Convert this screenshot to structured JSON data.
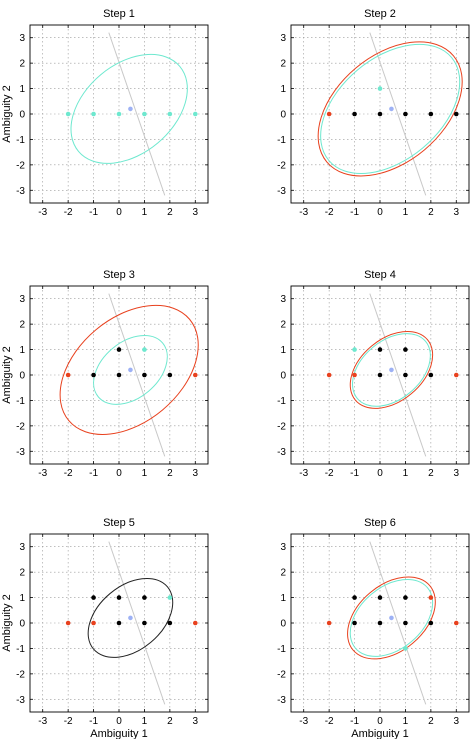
{
  "palette": {
    "black": "#000000",
    "red": "#e8411e",
    "cyan": "#6ee8cf",
    "blue": "#9db1f5",
    "grey_line": "#c8c8c8",
    "ellipse_black": "#222222"
  },
  "chart_data": [
    {
      "type": "scatter",
      "title": "Step 1",
      "xlabel": "",
      "ylabel": "Ambiguity 2",
      "xlim": [
        -3.5,
        3.5
      ],
      "ylim": [
        -3.5,
        3.5
      ],
      "xticks": [
        -3,
        -2,
        -1,
        0,
        1,
        2,
        3
      ],
      "yticks": [
        -3,
        -2,
        -1,
        0,
        1,
        2,
        3
      ],
      "grid": true,
      "guide_line": {
        "x1": -0.4,
        "y1": 3.2,
        "x2": 1.8,
        "y2": -3.2,
        "color": "grey_line"
      },
      "ellipses": [
        {
          "cx": 0.4,
          "cy": 0.2,
          "rx": 2.6,
          "ry": 1.75,
          "angle": -40,
          "color": "cyan"
        }
      ],
      "points": [
        {
          "x": -2,
          "y": 0,
          "color": "cyan"
        },
        {
          "x": -1,
          "y": 0,
          "color": "cyan"
        },
        {
          "x": 0,
          "y": 0,
          "color": "cyan"
        },
        {
          "x": 1,
          "y": 0,
          "color": "cyan"
        },
        {
          "x": 2,
          "y": 0,
          "color": "cyan"
        },
        {
          "x": 3,
          "y": 0,
          "color": "cyan"
        },
        {
          "x": 0.45,
          "y": 0.2,
          "color": "blue"
        }
      ]
    },
    {
      "type": "scatter",
      "title": "Step 2",
      "xlabel": "",
      "ylabel": "",
      "xlim": [
        -3.5,
        3.5
      ],
      "ylim": [
        -3.5,
        3.5
      ],
      "xticks": [
        -3,
        -2,
        -1,
        0,
        1,
        2,
        3
      ],
      "yticks": [
        -3,
        -2,
        -1,
        0,
        1,
        2,
        3
      ],
      "grid": true,
      "guide_line": {
        "x1": -0.4,
        "y1": 3.2,
        "x2": 1.8,
        "y2": -3.2,
        "color": "grey_line"
      },
      "ellipses": [
        {
          "cx": 0.4,
          "cy": 0.2,
          "rx": 3.15,
          "ry": 2.0,
          "angle": -40,
          "color": "cyan"
        },
        {
          "cx": 0.4,
          "cy": 0.2,
          "rx": 3.25,
          "ry": 2.1,
          "angle": -40,
          "color": "red"
        }
      ],
      "points": [
        {
          "x": -2,
          "y": 0,
          "color": "red"
        },
        {
          "x": -1,
          "y": 0,
          "color": "black"
        },
        {
          "x": 0,
          "y": 0,
          "color": "black"
        },
        {
          "x": 1,
          "y": 0,
          "color": "black"
        },
        {
          "x": 2,
          "y": 0,
          "color": "black"
        },
        {
          "x": 3,
          "y": 0,
          "color": "black"
        },
        {
          "x": 0,
          "y": 1,
          "color": "cyan"
        },
        {
          "x": 0.45,
          "y": 0.2,
          "color": "blue"
        }
      ]
    },
    {
      "type": "scatter",
      "title": "Step 3",
      "xlabel": "",
      "ylabel": "Ambiguity 2",
      "xlim": [
        -3.5,
        3.5
      ],
      "ylim": [
        -3.5,
        3.5
      ],
      "xticks": [
        -3,
        -2,
        -1,
        0,
        1,
        2,
        3
      ],
      "yticks": [
        -3,
        -2,
        -1,
        0,
        1,
        2,
        3
      ],
      "grid": true,
      "guide_line": {
        "x1": -0.4,
        "y1": 3.2,
        "x2": 1.8,
        "y2": -3.2,
        "color": "grey_line"
      },
      "ellipses": [
        {
          "cx": 0.45,
          "cy": 0.2,
          "rx": 1.65,
          "ry": 1.1,
          "angle": -40,
          "color": "cyan"
        },
        {
          "cx": 0.4,
          "cy": 0.2,
          "rx": 3.1,
          "ry": 2.05,
          "angle": -40,
          "color": "red"
        }
      ],
      "points": [
        {
          "x": -2,
          "y": 0,
          "color": "red"
        },
        {
          "x": -1,
          "y": 0,
          "color": "black"
        },
        {
          "x": 0,
          "y": 0,
          "color": "black"
        },
        {
          "x": 1,
          "y": 0,
          "color": "black"
        },
        {
          "x": 2,
          "y": 0,
          "color": "black"
        },
        {
          "x": 3,
          "y": 0,
          "color": "red"
        },
        {
          "x": 0,
          "y": 1,
          "color": "black"
        },
        {
          "x": 1,
          "y": 1,
          "color": "cyan"
        },
        {
          "x": 0.45,
          "y": 0.2,
          "color": "blue"
        }
      ]
    },
    {
      "type": "scatter",
      "title": "Step 4",
      "xlabel": "",
      "ylabel": "",
      "xlim": [
        -3.5,
        3.5
      ],
      "ylim": [
        -3.5,
        3.5
      ],
      "xticks": [
        -3,
        -2,
        -1,
        0,
        1,
        2,
        3
      ],
      "yticks": [
        -3,
        -2,
        -1,
        0,
        1,
        2,
        3
      ],
      "grid": true,
      "guide_line": {
        "x1": -0.4,
        "y1": 3.2,
        "x2": 1.8,
        "y2": -3.2,
        "color": "grey_line"
      },
      "ellipses": [
        {
          "cx": 0.45,
          "cy": 0.2,
          "rx": 1.75,
          "ry": 1.15,
          "angle": -40,
          "color": "cyan"
        },
        {
          "cx": 0.45,
          "cy": 0.2,
          "rx": 1.85,
          "ry": 1.22,
          "angle": -40,
          "color": "red"
        }
      ],
      "points": [
        {
          "x": -2,
          "y": 0,
          "color": "red"
        },
        {
          "x": -1,
          "y": 0,
          "color": "red"
        },
        {
          "x": 0,
          "y": 0,
          "color": "black"
        },
        {
          "x": 1,
          "y": 0,
          "color": "black"
        },
        {
          "x": 2,
          "y": 0,
          "color": "black"
        },
        {
          "x": 3,
          "y": 0,
          "color": "red"
        },
        {
          "x": -1,
          "y": 1,
          "color": "cyan"
        },
        {
          "x": 0,
          "y": 1,
          "color": "black"
        },
        {
          "x": 1,
          "y": 1,
          "color": "black"
        },
        {
          "x": 0.45,
          "y": 0.2,
          "color": "blue"
        }
      ]
    },
    {
      "type": "scatter",
      "title": "Step 5",
      "xlabel": "Ambiguity 1",
      "ylabel": "Ambiguity 2",
      "xlim": [
        -3.5,
        3.5
      ],
      "ylim": [
        -3.5,
        3.5
      ],
      "xticks": [
        -3,
        -2,
        -1,
        0,
        1,
        2,
        3
      ],
      "yticks": [
        -3,
        -2,
        -1,
        0,
        1,
        2,
        3
      ],
      "grid": true,
      "guide_line": {
        "x1": -0.4,
        "y1": 3.2,
        "x2": 1.8,
        "y2": -3.2,
        "color": "grey_line"
      },
      "ellipses": [
        {
          "cx": 0.45,
          "cy": 0.2,
          "rx": 1.9,
          "ry": 1.25,
          "angle": -40,
          "color": "ellipse_black"
        }
      ],
      "points": [
        {
          "x": -2,
          "y": 0,
          "color": "red"
        },
        {
          "x": -1,
          "y": 0,
          "color": "red"
        },
        {
          "x": 0,
          "y": 0,
          "color": "black"
        },
        {
          "x": 1,
          "y": 0,
          "color": "black"
        },
        {
          "x": 2,
          "y": 0,
          "color": "black"
        },
        {
          "x": 3,
          "y": 0,
          "color": "red"
        },
        {
          "x": -1,
          "y": 1,
          "color": "black"
        },
        {
          "x": 0,
          "y": 1,
          "color": "black"
        },
        {
          "x": 1,
          "y": 1,
          "color": "black"
        },
        {
          "x": 2,
          "y": 1,
          "color": "cyan"
        },
        {
          "x": 0.45,
          "y": 0.2,
          "color": "blue"
        }
      ]
    },
    {
      "type": "scatter",
      "title": "Step 6",
      "xlabel": "Ambiguity 1",
      "ylabel": "",
      "xlim": [
        -3.5,
        3.5
      ],
      "ylim": [
        -3.5,
        3.5
      ],
      "xticks": [
        -3,
        -2,
        -1,
        0,
        1,
        2,
        3
      ],
      "yticks": [
        -3,
        -2,
        -1,
        0,
        1,
        2,
        3
      ],
      "grid": true,
      "guide_line": {
        "x1": -0.4,
        "y1": 3.2,
        "x2": 1.8,
        "y2": -3.2,
        "color": "grey_line"
      },
      "ellipses": [
        {
          "cx": 0.45,
          "cy": 0.2,
          "rx": 1.85,
          "ry": 1.22,
          "angle": -40,
          "color": "cyan"
        },
        {
          "cx": 0.45,
          "cy": 0.2,
          "rx": 1.97,
          "ry": 1.3,
          "angle": -40,
          "color": "red"
        }
      ],
      "points": [
        {
          "x": -2,
          "y": 0,
          "color": "red"
        },
        {
          "x": -1,
          "y": 0,
          "color": "black"
        },
        {
          "x": 0,
          "y": 0,
          "color": "black"
        },
        {
          "x": 1,
          "y": 0,
          "color": "black"
        },
        {
          "x": 2,
          "y": 0,
          "color": "black"
        },
        {
          "x": 3,
          "y": 0,
          "color": "red"
        },
        {
          "x": -1,
          "y": 1,
          "color": "black"
        },
        {
          "x": 0,
          "y": 1,
          "color": "black"
        },
        {
          "x": 1,
          "y": 1,
          "color": "black"
        },
        {
          "x": 2,
          "y": 1,
          "color": "red"
        },
        {
          "x": 1,
          "y": -1,
          "color": "cyan"
        },
        {
          "x": 0.45,
          "y": 0.2,
          "color": "blue"
        }
      ]
    }
  ]
}
